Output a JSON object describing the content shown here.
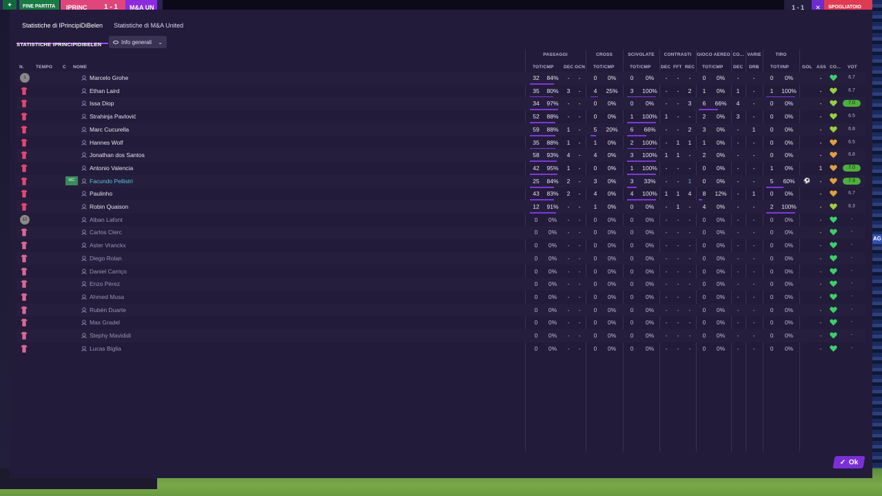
{
  "topbar": {
    "phase": "FINE PARTITA",
    "home_team": "IPRINC",
    "score": "1 - 1",
    "away_team": "M&A UN",
    "right_score": "1 - 1",
    "right_button": "SPOGLIATOIO"
  },
  "tabs": [
    {
      "label": "Statistiche di IPrincipiDiBelen",
      "active": true
    },
    {
      "label": "Statistiche di M&A United",
      "active": false
    }
  ],
  "subheader": {
    "title": "STATISTICHE IPRINCIPIDIBELEN",
    "dropdown_label": "Info generali"
  },
  "groups": {
    "passaggi": "PASSAGGI",
    "cross": "CROSS",
    "scivolate": "SCIVOLATE",
    "contrasti": "CONTRASTI",
    "gioco_aereo": "GIOCO AEREO",
    "co": "CO...",
    "varie": "VARIE",
    "tiro": "TIRO"
  },
  "columns": {
    "n": "N.",
    "tempo": "TEMPO",
    "c": "C",
    "nome": "NOME",
    "pass_tot": "TOT/CMP",
    "pass_dec": "DEC",
    "pass_ocn": "OCN",
    "cross_tot": "TOT/CMP",
    "sciv_tot": "TOT/CMP",
    "con_dec": "DEC",
    "con_fft": "FFT",
    "con_rec": "REC",
    "aereo_tot": "TOT/CMP",
    "co_dec": "DEC",
    "varie_drb": "DRB",
    "tiro_tot": "TOT/INP",
    "gol": "GOL",
    "ass": "ASS",
    "co": "CO...",
    "vot": "VOT"
  },
  "players": [
    {
      "name": "Marcelo Grohe",
      "kit": "gk",
      "pos": "",
      "status": "start",
      "pass": [
        "32",
        "84%"
      ],
      "pass_fill": 0.84,
      "pdec": "-",
      "pocn": "-",
      "cross": [
        "0",
        "0%"
      ],
      "cross_fill": 0,
      "sciv": [
        "0",
        "0%"
      ],
      "sciv_fill": 0,
      "cdec": "-",
      "cfft": "-",
      "crec": "-",
      "aer": [
        "0",
        "0%"
      ],
      "aer_fill": 0,
      "codec": "-",
      "drb": "-",
      "tiro": [
        "0",
        "0%"
      ],
      "tiro_fill": 0,
      "gol": "",
      "ass": "-",
      "heart": "#3ad06a",
      "vot": "6.7",
      "vot_hi": false
    },
    {
      "name": "Ethan Laird",
      "kit": "out",
      "pos": "",
      "status": "start",
      "pass": [
        "35",
        "80%"
      ],
      "pass_fill": 0.8,
      "pdec": "3",
      "pocn": "-",
      "cross": [
        "4",
        "25%"
      ],
      "cross_fill": 0.25,
      "sciv": [
        "3",
        "100%"
      ],
      "sciv_fill": 1,
      "cdec": "-",
      "cfft": "-",
      "crec": "2",
      "aer": [
        "1",
        "0%"
      ],
      "aer_fill": 0,
      "codec": "1",
      "drb": "-",
      "tiro": [
        "1",
        "100%"
      ],
      "tiro_fill": 1,
      "gol": "",
      "ass": "-",
      "heart": "#9ad03a",
      "vot": "6.7",
      "vot_hi": false
    },
    {
      "name": "Issa Diop",
      "kit": "out",
      "pos": "",
      "status": "start",
      "pass": [
        "34",
        "97%"
      ],
      "pass_fill": 0.97,
      "pdec": "-",
      "pocn": "-",
      "cross": [
        "0",
        "0%"
      ],
      "cross_fill": 0,
      "sciv": [
        "0",
        "0%"
      ],
      "sciv_fill": 0,
      "cdec": "-",
      "cfft": "-",
      "crec": "3",
      "aer": [
        "6",
        "66%"
      ],
      "aer_fill": 0.66,
      "codec": "4",
      "drb": "-",
      "tiro": [
        "0",
        "0%"
      ],
      "tiro_fill": 0,
      "gol": "",
      "ass": "-",
      "heart": "#9ad03a",
      "vot": "7.0",
      "vot_hi": true
    },
    {
      "name": "Strahinja Pavlović",
      "kit": "out",
      "pos": "",
      "status": "start",
      "pass": [
        "52",
        "88%"
      ],
      "pass_fill": 0.88,
      "pdec": "-",
      "pocn": "-",
      "cross": [
        "0",
        "0%"
      ],
      "cross_fill": 0,
      "sciv": [
        "1",
        "100%"
      ],
      "sciv_fill": 1,
      "cdec": "1",
      "cfft": "-",
      "crec": "-",
      "aer": [
        "2",
        "0%"
      ],
      "aer_fill": 0,
      "codec": "3",
      "drb": "-",
      "tiro": [
        "0",
        "0%"
      ],
      "tiro_fill": 0,
      "gol": "",
      "ass": "-",
      "heart": "#9ad03a",
      "vot": "6.5",
      "vot_hi": false
    },
    {
      "name": "Marc Cucurella",
      "kit": "out",
      "pos": "",
      "status": "start",
      "pass": [
        "59",
        "88%"
      ],
      "pass_fill": 0.88,
      "pdec": "1",
      "pocn": "-",
      "cross": [
        "5",
        "20%"
      ],
      "cross_fill": 0.2,
      "sciv": [
        "6",
        "66%"
      ],
      "sciv_fill": 0.66,
      "cdec": "-",
      "cfft": "-",
      "crec": "2",
      "aer": [
        "3",
        "0%"
      ],
      "aer_fill": 0,
      "codec": "-",
      "drb": "1",
      "tiro": [
        "0",
        "0%"
      ],
      "tiro_fill": 0,
      "gol": "",
      "ass": "-",
      "heart": "#9ad03a",
      "vot": "6.8",
      "vot_hi": false
    },
    {
      "name": "Hannes Wolf",
      "kit": "out",
      "pos": "",
      "status": "start",
      "pass": [
        "35",
        "88%"
      ],
      "pass_fill": 0.88,
      "pdec": "1",
      "pocn": "-",
      "cross": [
        "1",
        "0%"
      ],
      "cross_fill": 0,
      "sciv": [
        "2",
        "100%"
      ],
      "sciv_fill": 1,
      "cdec": "-",
      "cfft": "1",
      "crec": "1",
      "aer": [
        "1",
        "0%"
      ],
      "aer_fill": 0,
      "codec": "-",
      "drb": "-",
      "tiro": [
        "0",
        "0%"
      ],
      "tiro_fill": 0,
      "gol": "",
      "ass": "-",
      "heart": "#e0a040",
      "vot": "6.5",
      "vot_hi": false
    },
    {
      "name": "Jonathan dos Santos",
      "kit": "out",
      "pos": "",
      "status": "start",
      "pass": [
        "58",
        "93%"
      ],
      "pass_fill": 0.93,
      "pdec": "4",
      "pocn": "-",
      "cross": [
        "4",
        "0%"
      ],
      "cross_fill": 0,
      "sciv": [
        "3",
        "100%"
      ],
      "sciv_fill": 1,
      "cdec": "1",
      "cfft": "1",
      "crec": "-",
      "aer": [
        "2",
        "0%"
      ],
      "aer_fill": 0,
      "codec": "-",
      "drb": "-",
      "tiro": [
        "0",
        "0%"
      ],
      "tiro_fill": 0,
      "gol": "",
      "ass": "-",
      "heart": "#e0a040",
      "vot": "6.8",
      "vot_hi": false
    },
    {
      "name": "Antonio Valencia",
      "kit": "out",
      "pos": "",
      "status": "start",
      "pass": [
        "42",
        "95%"
      ],
      "pass_fill": 0.95,
      "pdec": "1",
      "pocn": "-",
      "cross": [
        "0",
        "0%"
      ],
      "cross_fill": 0,
      "sciv": [
        "1",
        "100%"
      ],
      "sciv_fill": 1,
      "cdec": "-",
      "cfft": "-",
      "crec": "-",
      "aer": [
        "0",
        "0%"
      ],
      "aer_fill": 0,
      "codec": "-",
      "drb": "-",
      "tiro": [
        "1",
        "0%"
      ],
      "tiro_fill": 0,
      "gol": "",
      "ass": "1",
      "heart": "#e0a040",
      "vot": "7.0",
      "vot_hi": true
    },
    {
      "name": "Facundo Pellistri",
      "kit": "out",
      "pos": "MC",
      "status": "mom",
      "pass": [
        "25",
        "84%"
      ],
      "pass_fill": 0.84,
      "pdec": "2",
      "pocn": "-",
      "cross": [
        "3",
        "0%"
      ],
      "cross_fill": 0,
      "sciv": [
        "3",
        "33%"
      ],
      "sciv_fill": 0.33,
      "cdec": "-",
      "cfft": "-",
      "crec": "1",
      "aer": [
        "0",
        "0%"
      ],
      "aer_fill": 0,
      "codec": "-",
      "drb": "-",
      "tiro": [
        "5",
        "60%"
      ],
      "tiro_fill": 0.6,
      "gol": "ball",
      "ass": "-",
      "heart": "#e0a040",
      "vot": "7.3",
      "vot_hi": true
    },
    {
      "name": "Paulinho",
      "kit": "out",
      "pos": "",
      "status": "start",
      "pass": [
        "43",
        "83%"
      ],
      "pass_fill": 0.83,
      "pdec": "2",
      "pocn": "-",
      "cross": [
        "4",
        "0%"
      ],
      "cross_fill": 0,
      "sciv": [
        "4",
        "100%"
      ],
      "sciv_fill": 1,
      "cdec": "1",
      "cfft": "1",
      "crec": "4",
      "aer": [
        "8",
        "12%"
      ],
      "aer_fill": 0.12,
      "codec": "-",
      "drb": "1",
      "tiro": [
        "0",
        "0%"
      ],
      "tiro_fill": 0,
      "gol": "",
      "ass": "-",
      "heart": "#e0a040",
      "vot": "6.7",
      "vot_hi": false
    },
    {
      "name": "Robin Quaison",
      "kit": "out",
      "pos": "",
      "status": "start",
      "pass": [
        "12",
        "91%"
      ],
      "pass_fill": 0.91,
      "pdec": "-",
      "pocn": "-",
      "cross": [
        "1",
        "0%"
      ],
      "cross_fill": 0,
      "sciv": [
        "0",
        "0%"
      ],
      "sciv_fill": 0,
      "cdec": "-",
      "cfft": "1",
      "crec": "-",
      "aer": [
        "4",
        "0%"
      ],
      "aer_fill": 0,
      "codec": "-",
      "drb": "-",
      "tiro": [
        "2",
        "100%"
      ],
      "tiro_fill": 1,
      "gol": "",
      "ass": "-",
      "heart": "#9ad03a",
      "vot": "6.3",
      "vot_hi": false
    },
    {
      "name": "Alban Lafont",
      "kit": "gk",
      "pos": "",
      "status": "sub",
      "pass": [
        "0",
        "0%"
      ],
      "pass_fill": 0,
      "pdec": "-",
      "pocn": "-",
      "cross": [
        "0",
        "0%"
      ],
      "cross_fill": 0,
      "sciv": [
        "0",
        "0%"
      ],
      "sciv_fill": 0,
      "cdec": "-",
      "cfft": "-",
      "crec": "-",
      "aer": [
        "0",
        "0%"
      ],
      "aer_fill": 0,
      "codec": "-",
      "drb": "-",
      "tiro": [
        "0",
        "0%"
      ],
      "tiro_fill": 0,
      "gol": "",
      "ass": "-",
      "heart": "#3ad06a",
      "vot": "-",
      "vot_hi": false
    },
    {
      "name": "Carlos Clerc",
      "kit": "out",
      "pos": "",
      "status": "sub",
      "pass": [
        "0",
        "0%"
      ],
      "pass_fill": 0,
      "pdec": "-",
      "pocn": "-",
      "cross": [
        "0",
        "0%"
      ],
      "cross_fill": 0,
      "sciv": [
        "0",
        "0%"
      ],
      "sciv_fill": 0,
      "cdec": "-",
      "cfft": "-",
      "crec": "-",
      "aer": [
        "0",
        "0%"
      ],
      "aer_fill": 0,
      "codec": "-",
      "drb": "-",
      "tiro": [
        "0",
        "0%"
      ],
      "tiro_fill": 0,
      "gol": "",
      "ass": "-",
      "heart": "#3ad06a",
      "vot": "-",
      "vot_hi": false
    },
    {
      "name": "Aster Vranckx",
      "kit": "out",
      "pos": "",
      "status": "sub",
      "pass": [
        "0",
        "0%"
      ],
      "pass_fill": 0,
      "pdec": "-",
      "pocn": "-",
      "cross": [
        "0",
        "0%"
      ],
      "cross_fill": 0,
      "sciv": [
        "0",
        "0%"
      ],
      "sciv_fill": 0,
      "cdec": "-",
      "cfft": "-",
      "crec": "-",
      "aer": [
        "0",
        "0%"
      ],
      "aer_fill": 0,
      "codec": "-",
      "drb": "-",
      "tiro": [
        "0",
        "0%"
      ],
      "tiro_fill": 0,
      "gol": "",
      "ass": "-",
      "heart": "#3ad06a",
      "vot": "-",
      "vot_hi": false
    },
    {
      "name": "Diego Rolan",
      "kit": "out",
      "pos": "",
      "status": "sub",
      "pass": [
        "0",
        "0%"
      ],
      "pass_fill": 0,
      "pdec": "-",
      "pocn": "-",
      "cross": [
        "0",
        "0%"
      ],
      "cross_fill": 0,
      "sciv": [
        "0",
        "0%"
      ],
      "sciv_fill": 0,
      "cdec": "-",
      "cfft": "-",
      "crec": "-",
      "aer": [
        "0",
        "0%"
      ],
      "aer_fill": 0,
      "codec": "-",
      "drb": "-",
      "tiro": [
        "0",
        "0%"
      ],
      "tiro_fill": 0,
      "gol": "",
      "ass": "-",
      "heart": "#3ad06a",
      "vot": "-",
      "vot_hi": false
    },
    {
      "name": "Daniel Carriço",
      "kit": "out",
      "pos": "",
      "status": "sub",
      "pass": [
        "0",
        "0%"
      ],
      "pass_fill": 0,
      "pdec": "-",
      "pocn": "-",
      "cross": [
        "0",
        "0%"
      ],
      "cross_fill": 0,
      "sciv": [
        "0",
        "0%"
      ],
      "sciv_fill": 0,
      "cdec": "-",
      "cfft": "-",
      "crec": "-",
      "aer": [
        "0",
        "0%"
      ],
      "aer_fill": 0,
      "codec": "-",
      "drb": "-",
      "tiro": [
        "0",
        "0%"
      ],
      "tiro_fill": 0,
      "gol": "",
      "ass": "-",
      "heart": "#3ad06a",
      "vot": "-",
      "vot_hi": false
    },
    {
      "name": "Enzo Pérez",
      "kit": "out",
      "pos": "",
      "status": "sub",
      "pass": [
        "0",
        "0%"
      ],
      "pass_fill": 0,
      "pdec": "-",
      "pocn": "-",
      "cross": [
        "0",
        "0%"
      ],
      "cross_fill": 0,
      "sciv": [
        "0",
        "0%"
      ],
      "sciv_fill": 0,
      "cdec": "-",
      "cfft": "-",
      "crec": "-",
      "aer": [
        "0",
        "0%"
      ],
      "aer_fill": 0,
      "codec": "-",
      "drb": "-",
      "tiro": [
        "0",
        "0%"
      ],
      "tiro_fill": 0,
      "gol": "",
      "ass": "-",
      "heart": "#3ad06a",
      "vot": "-",
      "vot_hi": false
    },
    {
      "name": "Ahmed Musa",
      "kit": "out",
      "pos": "",
      "status": "sub",
      "pass": [
        "0",
        "0%"
      ],
      "pass_fill": 0,
      "pdec": "-",
      "pocn": "-",
      "cross": [
        "0",
        "0%"
      ],
      "cross_fill": 0,
      "sciv": [
        "0",
        "0%"
      ],
      "sciv_fill": 0,
      "cdec": "-",
      "cfft": "-",
      "crec": "-",
      "aer": [
        "0",
        "0%"
      ],
      "aer_fill": 0,
      "codec": "-",
      "drb": "-",
      "tiro": [
        "0",
        "0%"
      ],
      "tiro_fill": 0,
      "gol": "",
      "ass": "-",
      "heart": "#3ad06a",
      "vot": "-",
      "vot_hi": false
    },
    {
      "name": "Rubén Duarte",
      "kit": "out",
      "pos": "",
      "status": "sub",
      "pass": [
        "0",
        "0%"
      ],
      "pass_fill": 0,
      "pdec": "-",
      "pocn": "-",
      "cross": [
        "0",
        "0%"
      ],
      "cross_fill": 0,
      "sciv": [
        "0",
        "0%"
      ],
      "sciv_fill": 0,
      "cdec": "-",
      "cfft": "-",
      "crec": "-",
      "aer": [
        "0",
        "0%"
      ],
      "aer_fill": 0,
      "codec": "-",
      "drb": "-",
      "tiro": [
        "0",
        "0%"
      ],
      "tiro_fill": 0,
      "gol": "",
      "ass": "-",
      "heart": "#3ad06a",
      "vot": "-",
      "vot_hi": false
    },
    {
      "name": "Max Gradel",
      "kit": "out",
      "pos": "",
      "status": "sub",
      "pass": [
        "0",
        "0%"
      ],
      "pass_fill": 0,
      "pdec": "-",
      "pocn": "-",
      "cross": [
        "0",
        "0%"
      ],
      "cross_fill": 0,
      "sciv": [
        "0",
        "0%"
      ],
      "sciv_fill": 0,
      "cdec": "-",
      "cfft": "-",
      "crec": "-",
      "aer": [
        "0",
        "0%"
      ],
      "aer_fill": 0,
      "codec": "-",
      "drb": "-",
      "tiro": [
        "0",
        "0%"
      ],
      "tiro_fill": 0,
      "gol": "",
      "ass": "-",
      "heart": "#3ad06a",
      "vot": "-",
      "vot_hi": false
    },
    {
      "name": "Stephy Mavididi",
      "kit": "out",
      "pos": "",
      "status": "sub",
      "pass": [
        "0",
        "0%"
      ],
      "pass_fill": 0,
      "pdec": "-",
      "pocn": "-",
      "cross": [
        "0",
        "0%"
      ],
      "cross_fill": 0,
      "sciv": [
        "0",
        "0%"
      ],
      "sciv_fill": 0,
      "cdec": "-",
      "cfft": "-",
      "crec": "-",
      "aer": [
        "0",
        "0%"
      ],
      "aer_fill": 0,
      "codec": "-",
      "drb": "-",
      "tiro": [
        "0",
        "0%"
      ],
      "tiro_fill": 0,
      "gol": "",
      "ass": "-",
      "heart": "#3ad06a",
      "vot": "-",
      "vot_hi": false
    },
    {
      "name": "Lucas Biglia",
      "kit": "out",
      "pos": "",
      "status": "sub",
      "pass": [
        "0",
        "0%"
      ],
      "pass_fill": 0,
      "pdec": "-",
      "pocn": "-",
      "cross": [
        "0",
        "0%"
      ],
      "cross_fill": 0,
      "sciv": [
        "0",
        "0%"
      ],
      "sciv_fill": 0,
      "cdec": "-",
      "cfft": "-",
      "crec": "-",
      "aer": [
        "0",
        "0%"
      ],
      "aer_fill": 0,
      "codec": "-",
      "drb": "-",
      "tiro": [
        "0",
        "0%"
      ],
      "tiro_fill": 0,
      "gol": "",
      "ass": "-",
      "heart": "#3ad06a",
      "vot": "-",
      "vot_hi": false
    }
  ],
  "gk_numbers": [
    "1",
    "12"
  ],
  "ok_label": "Ok",
  "colors": {
    "accent": "#7a30d8",
    "home": "#e0467a",
    "panel": "#231b3a",
    "mom_name": "#5fc4d8",
    "rating_high": "#4cb03a"
  }
}
